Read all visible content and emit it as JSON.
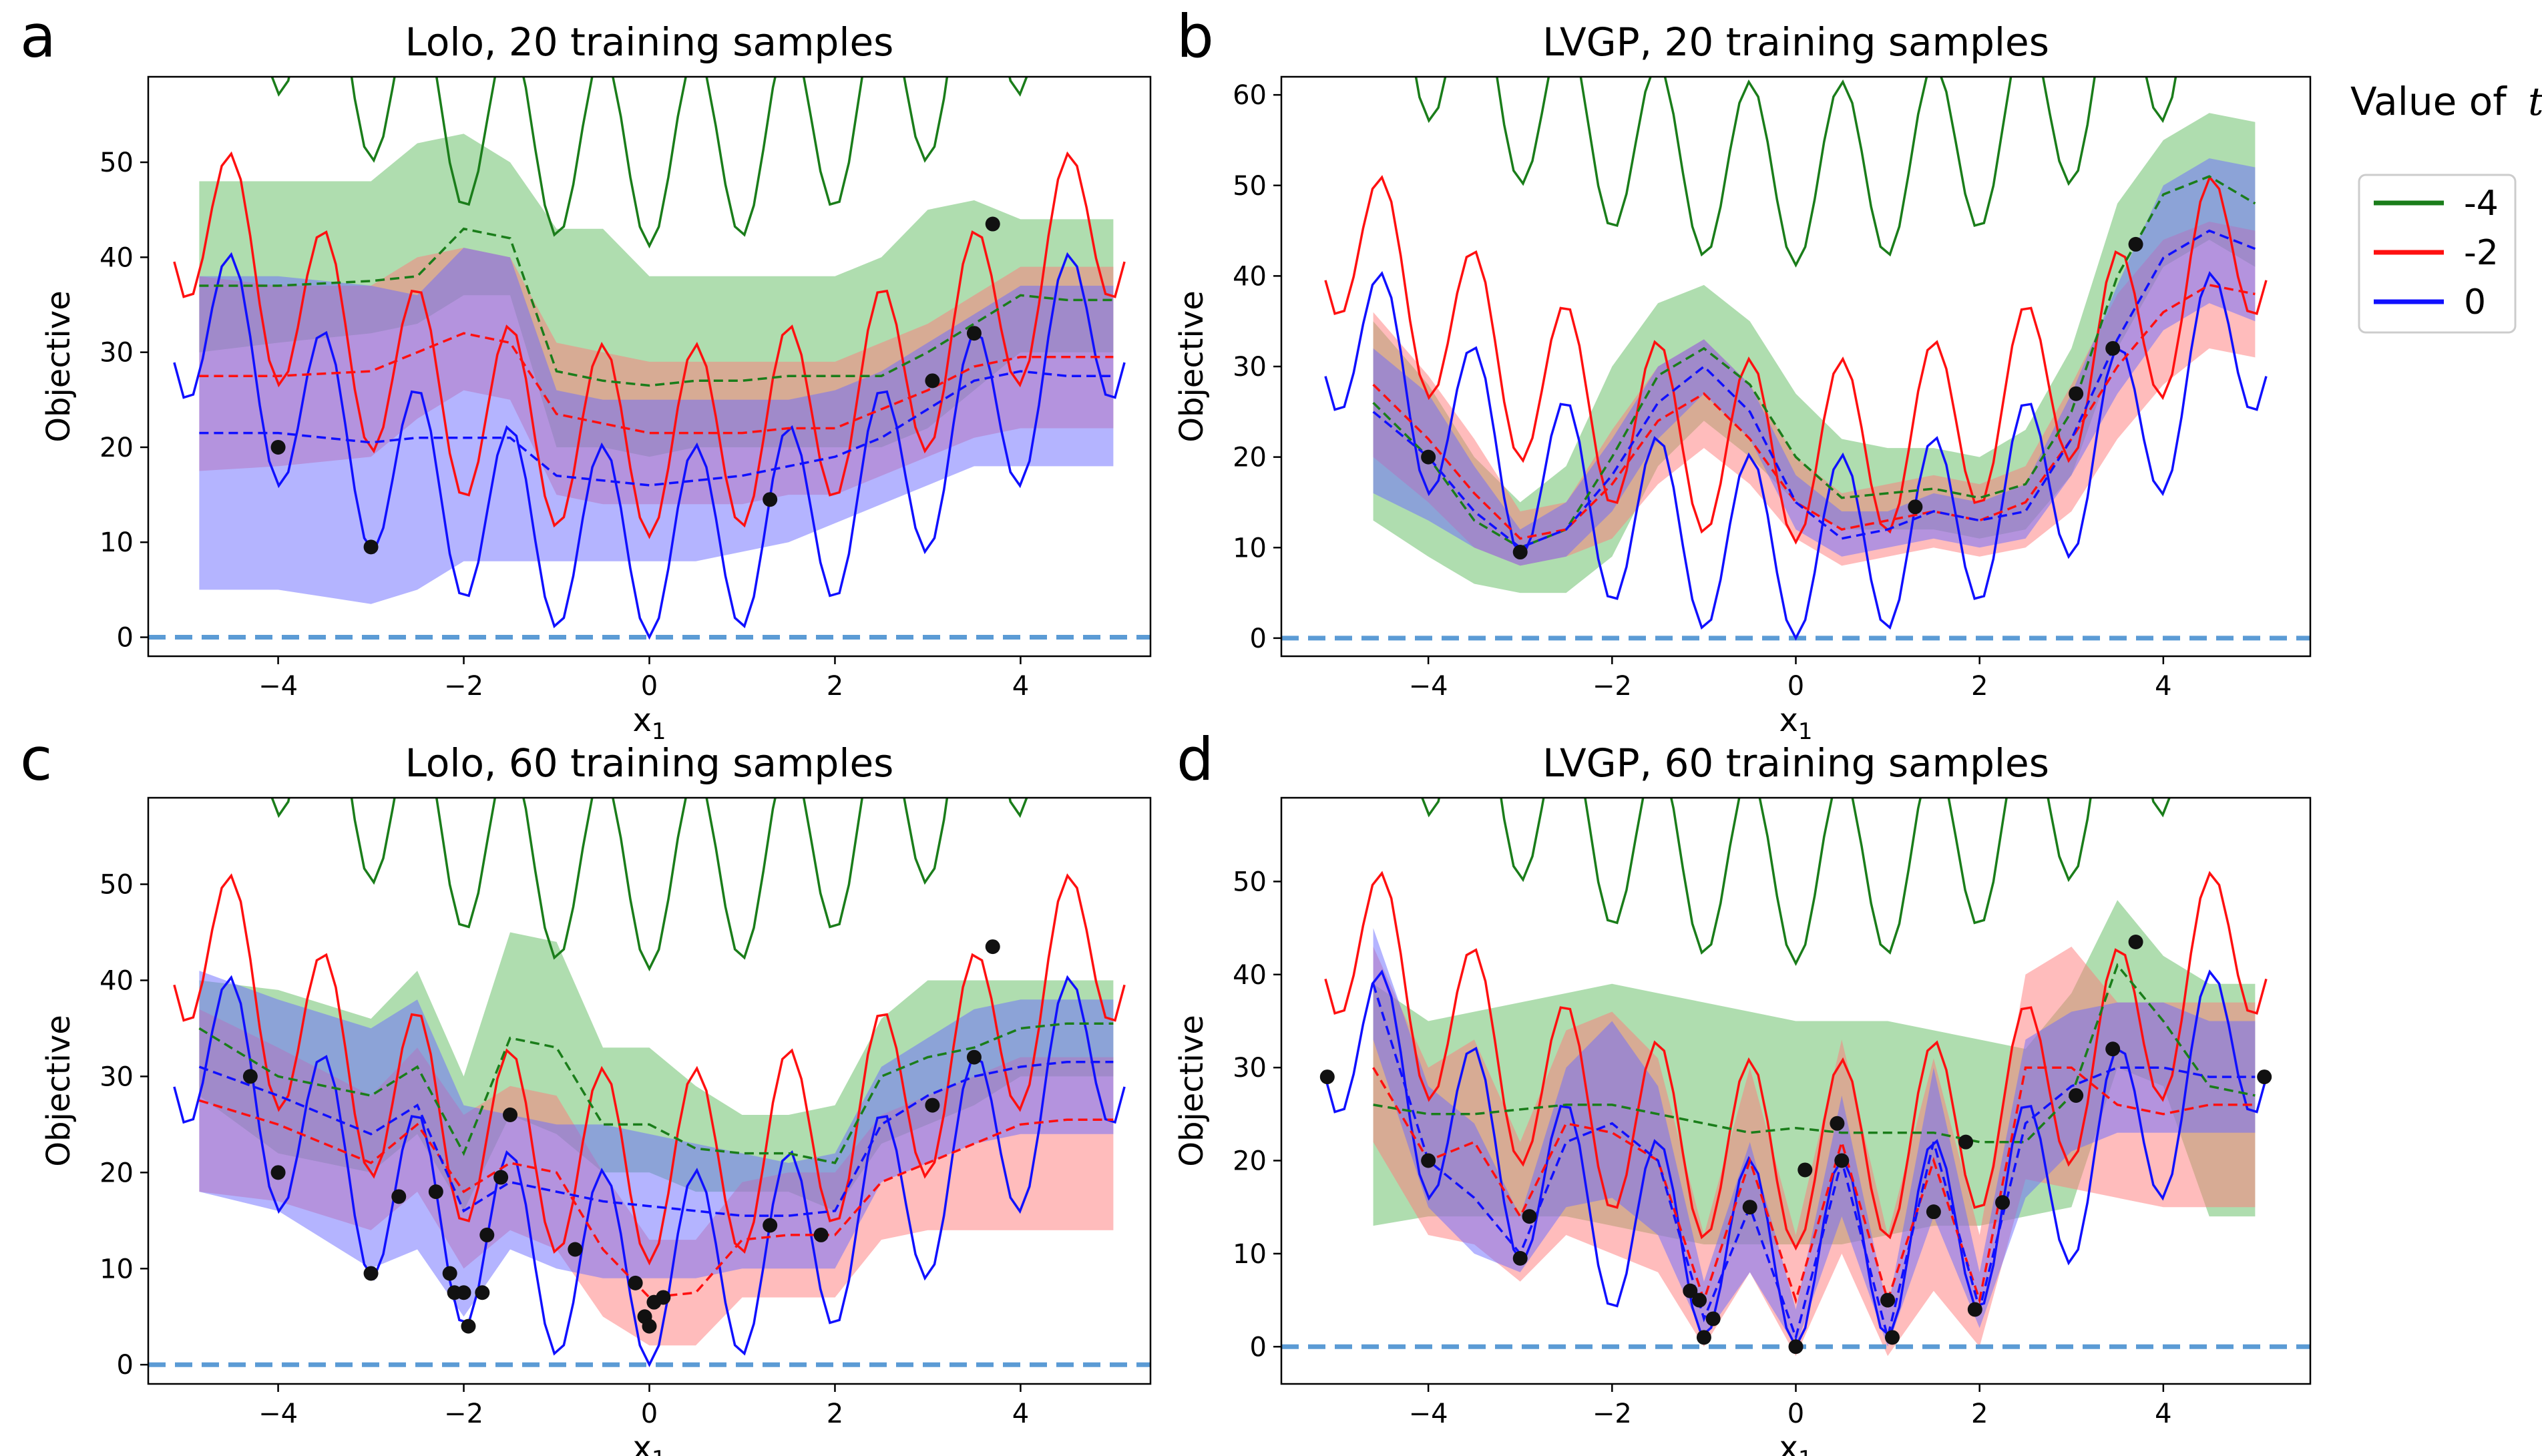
{
  "legend": {
    "title_prefix": "Value of",
    "title_var": "t",
    "entries": [
      {
        "label": "-4",
        "color": "#1a7d1a"
      },
      {
        "label": "-2",
        "color": "#ff1010"
      },
      {
        "label": "0",
        "color": "#1010ff"
      }
    ]
  },
  "colors": {
    "t_-4": "#1a7d1a",
    "t_-2": "#ff1010",
    "t_0": "#1010ff",
    "band_-4": "#60bb60",
    "band_-2": "#ff7a7a",
    "band_0": "#6a6aff",
    "baseline": "#5b9bd5",
    "point": "#111111"
  },
  "chart_data": [
    {
      "id": "a",
      "letter": "a",
      "type": "line",
      "title": "Lolo, 20 training samples",
      "xlabel": "x",
      "xlabel_sub": "1",
      "ylabel": "Objective",
      "xlim": [
        -5.4,
        5.4
      ],
      "ylim": [
        -2,
        59
      ],
      "xticks": [
        -4,
        -2,
        0,
        2,
        4
      ],
      "yticks": [
        0,
        10,
        20,
        30,
        40,
        50
      ],
      "baseline": 0,
      "mean": {
        "x": [
          -4.85,
          -4.0,
          -3.0,
          -2.5,
          -2.0,
          -1.5,
          -1.0,
          -0.5,
          0.0,
          0.5,
          1.0,
          1.5,
          2.0,
          2.5,
          3.0,
          3.5,
          4.0,
          4.5,
          5.0
        ],
        "t_-4": [
          37,
          37,
          37.5,
          38,
          43,
          42,
          28,
          27,
          26.5,
          27,
          27,
          27.5,
          27.5,
          27.5,
          30,
          33,
          36,
          35.5,
          35.5
        ],
        "t_-2": [
          27.5,
          27.5,
          28,
          30,
          32,
          31,
          23.5,
          22.5,
          21.5,
          21.5,
          21.5,
          22,
          22,
          24,
          26,
          28.5,
          29.5,
          29.5,
          29.5
        ],
        "t_0": [
          21.5,
          21.5,
          20.5,
          21,
          21,
          21,
          17,
          16.5,
          16,
          16.5,
          17,
          18,
          19,
          21,
          24,
          27,
          28,
          27.5,
          27.5
        ]
      },
      "band": {
        "x": [
          -4.85,
          -4.0,
          -3.0,
          -2.5,
          -2.0,
          -1.5,
          -1.0,
          -0.5,
          0.0,
          0.5,
          1.0,
          1.5,
          2.0,
          2.5,
          3.0,
          3.5,
          4.0,
          4.5,
          5.0
        ],
        "t_-4": {
          "lower": [
            30,
            31,
            32,
            33,
            36,
            36,
            20,
            20,
            19,
            20,
            20,
            20,
            20,
            20,
            22,
            26,
            30,
            30,
            30
          ],
          "upper": [
            48,
            48,
            48,
            52,
            53,
            50,
            43,
            43,
            38,
            38,
            38,
            38,
            38,
            40,
            45,
            46,
            44,
            44,
            44
          ]
        },
        "t_-2": {
          "lower": [
            17.5,
            18,
            19,
            23,
            26,
            25,
            15,
            14,
            14,
            14,
            14,
            15,
            15,
            17,
            19,
            21,
            22,
            22,
            22
          ],
          "upper": [
            38,
            37,
            37,
            40,
            41,
            40,
            31,
            30,
            29,
            29,
            29,
            29,
            29,
            31,
            33,
            36,
            39,
            39,
            39
          ]
        },
        "t_0": {
          "lower": [
            5,
            5,
            3.5,
            5,
            8,
            8,
            8,
            8,
            8,
            8,
            9,
            10,
            12,
            14,
            16,
            18,
            18,
            18,
            18
          ],
          "upper": [
            38,
            38,
            37,
            36,
            41,
            40,
            26,
            25,
            25,
            25,
            25,
            25,
            26,
            28,
            31,
            34,
            37,
            37,
            37
          ]
        }
      },
      "points": {
        "x": [
          -4.0,
          -3.0,
          1.3,
          3.05,
          3.5,
          3.7
        ],
        "y": [
          20,
          9.5,
          14.5,
          27,
          32,
          43.5
        ]
      }
    },
    {
      "id": "b",
      "letter": "b",
      "type": "line",
      "title": "LVGP, 20 training samples",
      "xlabel": "x",
      "xlabel_sub": "1",
      "ylabel": "Objective",
      "xlim": [
        -5.6,
        5.6
      ],
      "ylim": [
        -2,
        62
      ],
      "xticks": [
        -4,
        -2,
        0,
        2,
        4
      ],
      "yticks": [
        0,
        10,
        20,
        30,
        40,
        50,
        60
      ],
      "baseline": 0,
      "mean": {
        "x": [
          -4.6,
          -4.0,
          -3.5,
          -3.0,
          -2.5,
          -2.0,
          -1.5,
          -1.0,
          -0.5,
          0.0,
          0.5,
          1.0,
          1.5,
          2.0,
          2.5,
          3.0,
          3.5,
          4.0,
          4.5,
          5.0
        ],
        "t_-4": [
          26,
          20,
          13,
          10,
          12,
          20,
          29,
          32,
          28,
          20,
          15.5,
          16,
          16.5,
          15.5,
          17,
          25,
          40,
          49,
          51,
          48
        ],
        "t_-2": [
          28,
          22,
          16,
          11,
          12,
          17,
          24,
          27,
          22,
          15,
          12,
          13,
          14,
          13,
          15,
          22,
          30,
          36,
          39,
          38
        ],
        "t_0": [
          25,
          20,
          14,
          10,
          12,
          18,
          26,
          30,
          25,
          15,
          11,
          12,
          14,
          13,
          14,
          22,
          33,
          42,
          45,
          43
        ]
      },
      "band": {
        "x": [
          -4.6,
          -4.0,
          -3.5,
          -3.0,
          -2.5,
          -2.0,
          -1.5,
          -1.0,
          -0.5,
          0.0,
          0.5,
          1.0,
          1.5,
          2.0,
          2.5,
          3.0,
          3.5,
          4.0,
          4.5,
          5.0
        ],
        "t_-4": {
          "lower": [
            13,
            9,
            6,
            5,
            5,
            9,
            19,
            24,
            20,
            15,
            12,
            12,
            12,
            11,
            12,
            18,
            32,
            41,
            44,
            41
          ],
          "upper": [
            35,
            28,
            20,
            15,
            19,
            30,
            37,
            39,
            35,
            27,
            22,
            21,
            21,
            20,
            23,
            32,
            48,
            55,
            58,
            57
          ]
        },
        "t_-2": {
          "lower": [
            20,
            15,
            10,
            8,
            9,
            11,
            17,
            21,
            17,
            11,
            8,
            9,
            10,
            9,
            10,
            14,
            22,
            28,
            32,
            31
          ],
          "upper": [
            36,
            29,
            22,
            14,
            15,
            23,
            30,
            33,
            28,
            20,
            16,
            17,
            18,
            17,
            19,
            28,
            38,
            44,
            46,
            45
          ]
        },
        "t_0": {
          "lower": [
            16,
            13,
            10,
            8,
            9,
            14,
            22,
            27,
            22,
            12,
            9,
            10,
            11,
            10,
            11,
            18,
            27,
            34,
            37,
            35
          ],
          "upper": [
            32,
            27,
            19,
            12,
            15,
            22,
            30,
            33,
            28,
            18,
            14,
            14,
            16,
            15,
            17,
            27,
            39,
            50,
            53,
            52
          ]
        }
      },
      "points": {
        "x": [
          -4.0,
          -3.0,
          1.3,
          3.05,
          3.45,
          3.7
        ],
        "y": [
          20,
          9.5,
          14.5,
          27,
          32,
          43.5
        ]
      }
    },
    {
      "id": "c",
      "letter": "c",
      "type": "line",
      "title": "Lolo, 60 training samples",
      "xlabel": "x",
      "xlabel_sub": "1",
      "ylabel": "Objective",
      "xlim": [
        -5.4,
        5.4
      ],
      "ylim": [
        -2,
        59
      ],
      "xticks": [
        -4,
        -2,
        0,
        2,
        4
      ],
      "yticks": [
        0,
        10,
        20,
        30,
        40,
        50
      ],
      "baseline": 0,
      "mean": {
        "x": [
          -4.85,
          -4.0,
          -3.0,
          -2.5,
          -2.0,
          -1.5,
          -1.0,
          -0.5,
          0.0,
          0.5,
          1.0,
          1.5,
          2.0,
          2.5,
          3.0,
          3.5,
          4.0,
          4.5,
          5.0
        ],
        "t_-4": [
          35,
          30,
          28,
          31,
          22,
          34,
          33,
          25,
          25,
          22.5,
          22,
          22,
          21,
          30,
          32,
          33,
          35,
          35.5,
          35.5
        ],
        "t_-2": [
          27.5,
          25,
          21,
          25,
          18,
          21,
          20,
          12,
          7,
          7.5,
          13,
          13.5,
          13.5,
          19,
          21,
          23,
          25,
          25.5,
          25.5
        ],
        "t_0": [
          31,
          28,
          24,
          27,
          16,
          19,
          18,
          17,
          16.5,
          16,
          15.5,
          15.5,
          16,
          25,
          28,
          30,
          31,
          31.5,
          31.5
        ]
      },
      "band": {
        "x": [
          -4.85,
          -4.0,
          -3.0,
          -2.5,
          -2.0,
          -1.5,
          -1.0,
          -0.5,
          0.0,
          0.5,
          1.0,
          1.5,
          2.0,
          2.5,
          3.0,
          3.5,
          4.0,
          4.5,
          5.0
        ],
        "t_-4": {
          "lower": [
            28,
            22,
            20,
            24,
            16,
            26,
            24,
            20,
            20,
            18,
            18,
            18,
            16,
            23,
            25,
            27,
            30,
            30,
            30
          ],
          "upper": [
            40,
            39,
            36,
            41,
            30,
            45,
            44,
            33,
            33,
            29,
            26,
            26,
            27,
            36,
            40,
            40,
            40,
            40,
            40
          ]
        },
        "t_-2": {
          "lower": [
            18,
            17,
            14,
            18,
            10,
            14,
            12,
            5,
            2,
            2,
            7,
            7,
            7,
            13,
            14,
            14,
            14,
            14,
            14
          ],
          "upper": [
            37,
            33,
            28,
            33,
            26,
            29,
            28,
            20,
            13,
            13,
            19,
            20,
            20,
            26,
            28,
            30,
            32,
            32,
            32
          ]
        },
        "t_0": {
          "lower": [
            18,
            16,
            10,
            12,
            5,
            12,
            10,
            9,
            9,
            9,
            10,
            10,
            10,
            19,
            21,
            23,
            24,
            24,
            24
          ],
          "upper": [
            41,
            38,
            35,
            38,
            27,
            26,
            25,
            25,
            24,
            23,
            22,
            21,
            22,
            31,
            34,
            37,
            38,
            38,
            38
          ]
        }
      },
      "points": {
        "x": [
          -4.3,
          -4.0,
          -3.0,
          -2.7,
          -2.3,
          -2.15,
          -2.1,
          -2.0,
          -1.95,
          -1.8,
          -1.75,
          -1.6,
          -1.5,
          -0.8,
          -0.15,
          -0.05,
          0.0,
          0.05,
          0.15,
          1.3,
          1.85,
          3.05,
          3.5,
          3.7
        ],
        "y": [
          30,
          20,
          9.5,
          17.5,
          18,
          9.5,
          7.5,
          7.5,
          4,
          7.5,
          13.5,
          19.5,
          26,
          12,
          8.5,
          5,
          4,
          6.5,
          7,
          14.5,
          13.5,
          27,
          32,
          43.5
        ]
      }
    },
    {
      "id": "d",
      "letter": "d",
      "type": "line",
      "title": "LVGP, 60 training samples",
      "xlabel": "x",
      "xlabel_sub": "1",
      "ylabel": "Objective",
      "xlim": [
        -5.6,
        5.6
      ],
      "ylim": [
        -4,
        59
      ],
      "xticks": [
        -4,
        -2,
        0,
        2,
        4
      ],
      "yticks": [
        0,
        10,
        20,
        30,
        40,
        50
      ],
      "baseline": 0,
      "mean": {
        "x": [
          -4.6,
          -4.0,
          -3.5,
          -3.0,
          -2.5,
          -2.0,
          -1.5,
          -1.0,
          -0.5,
          0.0,
          0.5,
          1.0,
          1.5,
          2.0,
          2.5,
          3.0,
          3.5,
          4.0,
          4.5,
          5.0
        ],
        "t_-4": [
          26,
          25,
          25,
          25.5,
          26,
          26,
          25,
          24,
          23,
          23.5,
          23,
          23,
          23,
          22,
          22,
          27,
          41,
          35,
          28,
          27
        ],
        "t_-2": [
          30,
          20,
          22,
          14,
          24,
          23,
          20,
          5,
          20,
          5,
          22,
          5,
          20,
          5,
          30,
          30,
          26,
          25,
          26,
          26
        ],
        "t_0": [
          39,
          20,
          16,
          10,
          22,
          24,
          20,
          3,
          15,
          1,
          20,
          1,
          22,
          4,
          24,
          28,
          30,
          30,
          29,
          29
        ]
      },
      "band": {
        "x": [
          -4.6,
          -4.0,
          -3.5,
          -3.0,
          -2.5,
          -2.0,
          -1.5,
          -1.0,
          -0.5,
          0.0,
          0.5,
          1.0,
          1.5,
          2.0,
          2.5,
          3.0,
          3.5,
          4.0,
          4.5,
          5.0
        ],
        "t_-4": {
          "lower": [
            13,
            14,
            14,
            14,
            14,
            13,
            12,
            11,
            11,
            11,
            11,
            12,
            13,
            13,
            14,
            15,
            30,
            28,
            14,
            14
          ],
          "upper": [
            39,
            35,
            36,
            37,
            38,
            39,
            38,
            37,
            36,
            35,
            35,
            35,
            34,
            33,
            32,
            38,
            48,
            42,
            39,
            39
          ]
        },
        "t_-2": {
          "lower": [
            22,
            12,
            11,
            7,
            12,
            10,
            8,
            0,
            8,
            -1,
            10,
            -1,
            6,
            0,
            18,
            17,
            16,
            15,
            15,
            15
          ],
          "upper": [
            43,
            30,
            33,
            22,
            34,
            36,
            31,
            12,
            30,
            12,
            33,
            12,
            31,
            12,
            40,
            43,
            37,
            37,
            37,
            37
          ]
        },
        "t_0": {
          "lower": [
            33,
            15,
            10,
            8,
            15,
            16,
            12,
            1,
            8,
            0,
            14,
            0,
            14,
            2,
            16,
            21,
            23,
            23,
            23,
            23
          ],
          "upper": [
            45,
            28,
            24,
            14,
            30,
            35,
            28,
            7,
            22,
            4,
            27,
            4,
            30,
            8,
            33,
            36,
            37,
            37,
            35,
            35
          ]
        }
      },
      "points": {
        "x": [
          -5.1,
          -4.0,
          -2.9,
          -3.0,
          -1.15,
          -1.05,
          -1.0,
          -0.9,
          -0.5,
          0.0,
          0.1,
          0.45,
          0.5,
          1.0,
          1.05,
          1.5,
          1.95,
          1.85,
          2.25,
          3.05,
          3.45,
          3.7,
          5.1
        ],
        "y": [
          29,
          20,
          14,
          9.5,
          6,
          5,
          1,
          3,
          15,
          0,
          19,
          24,
          20,
          5,
          1,
          14.5,
          4,
          22,
          15.5,
          27,
          32,
          43.5,
          29
        ]
      }
    }
  ]
}
